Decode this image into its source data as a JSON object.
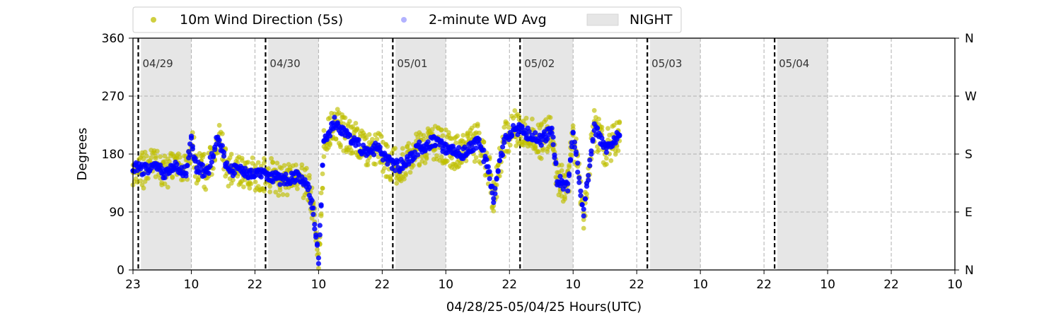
{
  "chart_data": {
    "type": "scatter",
    "xlabel": "04/28/25-05/04/25  Hours(UTC)",
    "ylabel": "Degrees",
    "ylim": [
      0,
      360
    ],
    "yticks": [
      0,
      90,
      180,
      270,
      360
    ],
    "right_ticks": [
      {
        "value": 0,
        "label": "N"
      },
      {
        "value": 90,
        "label": "E"
      },
      {
        "value": 180,
        "label": "S"
      },
      {
        "value": 270,
        "label": "W"
      },
      {
        "value": 360,
        "label": "N"
      }
    ],
    "x_start": "2025-04-28 23:00",
    "x_end": "2025-05-05 10:00",
    "x_ticks": [
      {
        "at": "2025-04-28 23:00",
        "label": "23"
      },
      {
        "at": "2025-04-29 10:00",
        "label": "10"
      },
      {
        "at": "2025-04-29 22:00",
        "label": "22"
      },
      {
        "at": "2025-04-30 10:00",
        "label": "10"
      },
      {
        "at": "2025-04-30 22:00",
        "label": "22"
      },
      {
        "at": "2025-05-01 10:00",
        "label": "10"
      },
      {
        "at": "2025-05-01 22:00",
        "label": "22"
      },
      {
        "at": "2025-05-02 10:00",
        "label": "10"
      },
      {
        "at": "2025-05-02 22:00",
        "label": "22"
      },
      {
        "at": "2025-05-03 10:00",
        "label": "10"
      },
      {
        "at": "2025-05-03 22:00",
        "label": "22"
      },
      {
        "at": "2025-05-04 10:00",
        "label": "10"
      },
      {
        "at": "2025-05-04 22:00",
        "label": "22"
      },
      {
        "at": "2025-05-05 10:00",
        "label": "10"
      }
    ],
    "date_markers": [
      {
        "at": "2025-04-29 00:00",
        "label": "04/29"
      },
      {
        "at": "2025-04-30 00:00",
        "label": "04/30"
      },
      {
        "at": "2025-05-01 00:00",
        "label": "05/01"
      },
      {
        "at": "2025-05-02 00:00",
        "label": "05/02"
      },
      {
        "at": "2025-05-03 00:00",
        "label": "05/03"
      },
      {
        "at": "2025-05-04 00:00",
        "label": "05/04"
      }
    ],
    "night_periods": [
      {
        "start": "2025-04-29 00:30",
        "end": "2025-04-29 10:00"
      },
      {
        "start": "2025-04-30 00:30",
        "end": "2025-04-30 10:00"
      },
      {
        "start": "2025-05-01 00:30",
        "end": "2025-05-01 10:00"
      },
      {
        "start": "2025-05-02 00:30",
        "end": "2025-05-02 10:00"
      },
      {
        "start": "2025-05-03 00:30",
        "end": "2025-05-03 10:00"
      },
      {
        "start": "2025-05-04 00:30",
        "end": "2025-05-04 10:00"
      }
    ],
    "grid": true,
    "legend": {
      "placement": "top",
      "entries": [
        {
          "label": "10m Wind Direction (5s)",
          "kind": "marker",
          "color": "#bfbf00"
        },
        {
          "label": "2-minute WD Avg",
          "kind": "marker",
          "color": "#0000ff"
        },
        {
          "label": "NIGHT",
          "kind": "patch",
          "color": "#e6e6e6"
        }
      ]
    },
    "series": [
      {
        "name": "10m Wind Direction (5s)",
        "color": "#bfbf00",
        "spread": 28,
        "x": [
          "2025-04-28 23:00",
          "2025-04-29 01:00",
          "2025-04-29 03:00",
          "2025-04-29 05:00",
          "2025-04-29 07:00",
          "2025-04-29 09:00",
          "2025-04-29 10:00",
          "2025-04-29 11:00",
          "2025-04-29 13:00",
          "2025-04-29 15:00",
          "2025-04-29 17:00",
          "2025-04-29 19:00",
          "2025-04-29 21:00",
          "2025-04-30 00:00",
          "2025-04-30 03:00",
          "2025-04-30 06:00",
          "2025-04-30 08:00",
          "2025-04-30 09:00",
          "2025-04-30 10:00",
          "2025-04-30 11:00",
          "2025-04-30 13:00",
          "2025-04-30 15:00",
          "2025-04-30 17:00",
          "2025-04-30 19:00",
          "2025-04-30 21:00",
          "2025-04-30 23:00",
          "2025-05-01 01:00",
          "2025-05-01 03:00",
          "2025-05-01 05:00",
          "2025-05-01 08:00",
          "2025-05-01 10:00",
          "2025-05-01 13:00",
          "2025-05-01 16:00",
          "2025-05-01 18:00",
          "2025-05-01 19:00",
          "2025-05-01 21:00",
          "2025-05-01 23:00",
          "2025-05-02 02:00",
          "2025-05-02 04:00",
          "2025-05-02 06:00",
          "2025-05-02 07:00",
          "2025-05-02 09:00",
          "2025-05-02 10:00",
          "2025-05-02 12:00",
          "2025-05-02 14:00",
          "2025-05-02 16:00",
          "2025-05-02 18:00",
          "2025-05-02 19:00"
        ],
        "y": [
          160,
          155,
          160,
          150,
          160,
          150,
          200,
          160,
          150,
          210,
          150,
          160,
          150,
          150,
          140,
          145,
          130,
          90,
          15,
          200,
          230,
          210,
          200,
          180,
          190,
          170,
          160,
          170,
          190,
          200,
          190,
          180,
          200,
          160,
          110,
          200,
          220,
          210,
          200,
          220,
          140,
          130,
          210,
          90,
          220,
          190,
          200,
          220
        ]
      },
      {
        "name": "2-minute WD Avg",
        "color": "#0000ff",
        "spread": 9,
        "x": [
          "2025-04-28 23:00",
          "2025-04-29 01:00",
          "2025-04-29 03:00",
          "2025-04-29 05:00",
          "2025-04-29 07:00",
          "2025-04-29 09:00",
          "2025-04-29 10:00",
          "2025-04-29 11:00",
          "2025-04-29 13:00",
          "2025-04-29 15:00",
          "2025-04-29 17:00",
          "2025-04-29 19:00",
          "2025-04-29 21:00",
          "2025-04-30 00:00",
          "2025-04-30 03:00",
          "2025-04-30 06:00",
          "2025-04-30 08:00",
          "2025-04-30 09:00",
          "2025-04-30 10:00",
          "2025-04-30 11:00",
          "2025-04-30 13:00",
          "2025-04-30 15:00",
          "2025-04-30 17:00",
          "2025-04-30 19:00",
          "2025-04-30 21:00",
          "2025-04-30 23:00",
          "2025-05-01 01:00",
          "2025-05-01 03:00",
          "2025-05-01 05:00",
          "2025-05-01 08:00",
          "2025-05-01 10:00",
          "2025-05-01 13:00",
          "2025-05-01 16:00",
          "2025-05-01 18:00",
          "2025-05-01 19:00",
          "2025-05-01 21:00",
          "2025-05-01 23:00",
          "2025-05-02 02:00",
          "2025-05-02 04:00",
          "2025-05-02 06:00",
          "2025-05-02 07:00",
          "2025-05-02 09:00",
          "2025-05-02 10:00",
          "2025-05-02 12:00",
          "2025-05-02 14:00",
          "2025-05-02 16:00",
          "2025-05-02 18:00",
          "2025-05-02 19:00"
        ],
        "y": [
          160,
          155,
          160,
          150,
          160,
          150,
          200,
          160,
          150,
          210,
          150,
          160,
          150,
          150,
          140,
          145,
          130,
          90,
          15,
          200,
          230,
          210,
          200,
          180,
          190,
          170,
          160,
          170,
          190,
          200,
          190,
          180,
          200,
          160,
          110,
          200,
          220,
          210,
          200,
          220,
          140,
          130,
          210,
          90,
          220,
          190,
          200,
          220
        ]
      }
    ]
  }
}
